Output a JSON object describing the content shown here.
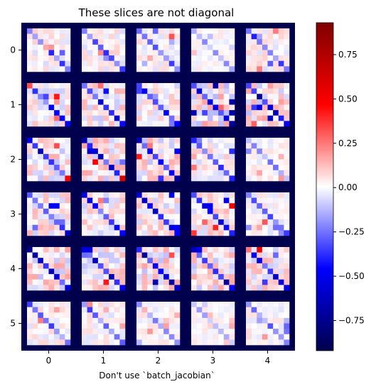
{
  "chart_data": {
    "type": "heatmap",
    "title": "These slices are not diagonal",
    "xlabel": "Don't use `batch_jacobian`",
    "ylabel": "",
    "x_ticks": [
      "0",
      "1",
      "2",
      "3",
      "4"
    ],
    "y_ticks": [
      "0",
      "1",
      "2",
      "3",
      "4",
      "5"
    ],
    "grid": {
      "rows": 6,
      "cols": 5,
      "cell_size": 8
    },
    "colormap": "seismic",
    "background_value": -0.92,
    "colorbar": {
      "vmin": -0.92,
      "vmax": 0.93,
      "ticks": [
        {
          "value": 0.75,
          "label": "0.75"
        },
        {
          "value": 0.5,
          "label": "0.50"
        },
        {
          "value": 0.25,
          "label": "0.25"
        },
        {
          "value": 0.0,
          "label": "0.00"
        },
        {
          "value": -0.25,
          "label": "−0.25"
        },
        {
          "value": -0.5,
          "label": "−0.50"
        },
        {
          "value": -0.75,
          "label": "−0.75"
        }
      ]
    },
    "panel_scale": [
      [
        0.45,
        0.45,
        0.4,
        0.25,
        0.45
      ],
      [
        0.6,
        0.7,
        0.55,
        0.9,
        0.85
      ],
      [
        0.75,
        0.8,
        0.8,
        0.5,
        0.3
      ],
      [
        0.7,
        0.6,
        0.7,
        0.65,
        0.4
      ],
      [
        0.85,
        0.75,
        0.85,
        0.8,
        0.7
      ],
      [
        0.4,
        0.4,
        0.3,
        0.25,
        0.35
      ]
    ]
  }
}
